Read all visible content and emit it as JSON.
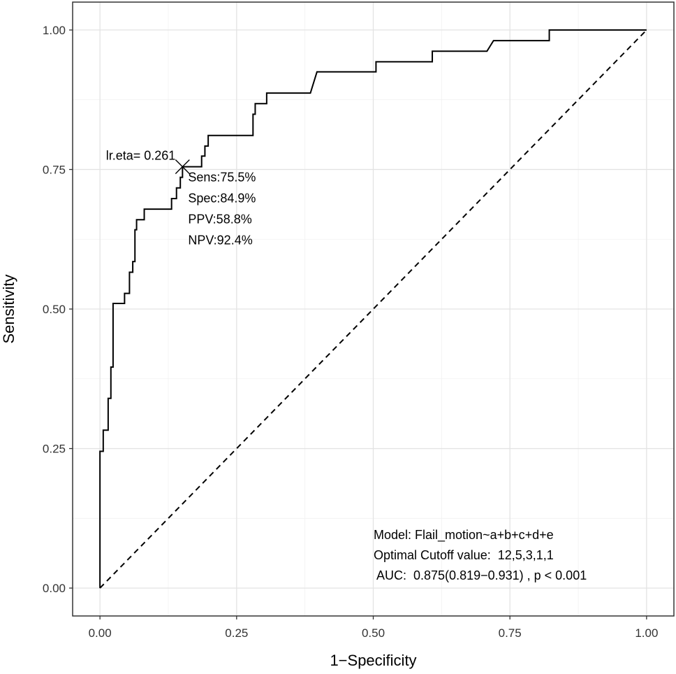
{
  "chart_data": {
    "type": "line",
    "xlabel": "1−Specificity",
    "ylabel": "Sensitivity",
    "xlim": [
      -0.05,
      1.05
    ],
    "ylim": [
      -0.05,
      1.05
    ],
    "x_ticks": [
      0,
      0.25,
      0.5,
      0.75,
      1
    ],
    "x_tick_labels": [
      "0.00",
      "0.25",
      "0.50",
      "0.75",
      "1.00"
    ],
    "y_ticks": [
      0,
      0.25,
      0.5,
      0.75,
      1
    ],
    "y_tick_labels": [
      "0.00",
      "0.25",
      "0.50",
      "0.75",
      "1.00"
    ],
    "grid": true,
    "series": [
      {
        "name": "ROC curve",
        "style": "solid",
        "color": "#000000",
        "x": [
          0,
          0,
          0.006,
          0.006,
          0.015,
          0.015,
          0.02,
          0.02,
          0.024,
          0.024,
          0.028,
          0.028,
          0.045,
          0.045,
          0.054,
          0.054,
          0.06,
          0.06,
          0.064,
          0.064,
          0.067,
          0.067,
          0.07,
          0.07,
          0.081,
          0.081,
          0.092,
          0.092,
          0.131,
          0.131,
          0.14,
          0.14,
          0.147,
          0.147,
          0.151,
          0.151,
          0.186,
          0.186,
          0.192,
          0.192,
          0.198,
          0.198,
          0.205,
          0.205,
          0.28,
          0.28,
          0.284,
          0.284,
          0.3,
          0.3,
          0.305,
          0.305,
          0.385,
          0.397,
          0.505,
          0.505,
          0.608,
          0.608,
          0.708,
          0.72,
          0.822,
          0.822,
          1
        ],
        "y": [
          0,
          0.245,
          0.245,
          0.283,
          0.283,
          0.34,
          0.34,
          0.396,
          0.396,
          0.51,
          0.51,
          0.51,
          0.51,
          0.528,
          0.528,
          0.566,
          0.566,
          0.585,
          0.585,
          0.642,
          0.642,
          0.66,
          0.66,
          0.66,
          0.66,
          0.679,
          0.679,
          0.679,
          0.679,
          0.698,
          0.698,
          0.717,
          0.717,
          0.736,
          0.736,
          0.755,
          0.755,
          0.774,
          0.774,
          0.792,
          0.792,
          0.811,
          0.811,
          0.811,
          0.811,
          0.849,
          0.849,
          0.868,
          0.868,
          0.868,
          0.868,
          0.887,
          0.887,
          0.925,
          0.925,
          0.943,
          0.943,
          0.962,
          0.962,
          0.981,
          0.981,
          1.0,
          1.0
        ]
      },
      {
        "name": "Reference line",
        "style": "dashed",
        "color": "#000000",
        "x": [
          0,
          1
        ],
        "y": [
          0,
          1
        ]
      }
    ],
    "cutoff_point": {
      "x": 0.151,
      "y": 0.755,
      "marker": "cross",
      "label": "lr.eta= 0.261",
      "stats": [
        "Sens:75.5%",
        "Spec:84.9%",
        "PPV:58.8%",
        "NPV:92.4%"
      ]
    },
    "annotations": [
      "Model: Flail_motion~a+b+c+d+e",
      "Optimal Cutoff value:  12,5,3,1,1",
      " AUC:  0.875(0.819−0.931) , p < 0.001"
    ]
  }
}
